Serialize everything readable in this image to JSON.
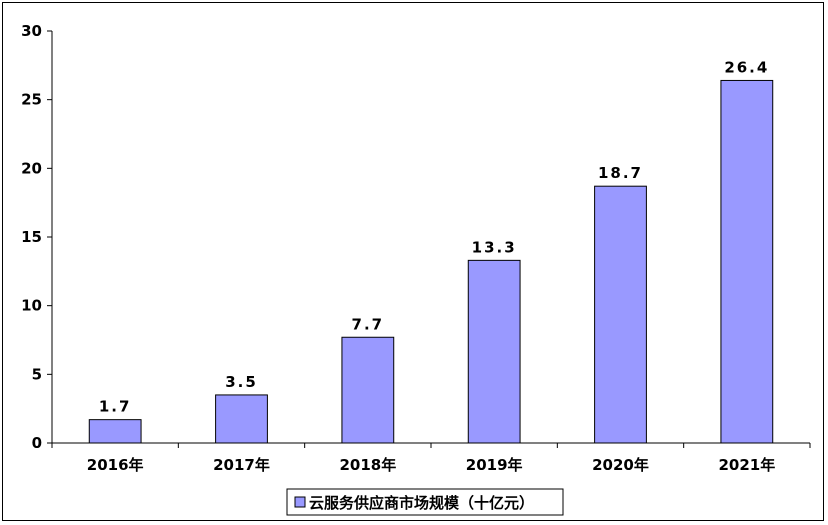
{
  "chart_data": {
    "type": "bar",
    "categories": [
      "2016年",
      "2017年",
      "2018年",
      "2019年",
      "2020年",
      "2021年"
    ],
    "series": [
      {
        "name": "云服务供应商市场规模（十亿元）",
        "values": [
          1.7,
          3.5,
          7.7,
          13.3,
          18.7,
          26.4
        ],
        "color": "#9999ff"
      }
    ],
    "data_labels": [
      "1.7",
      "3.5",
      "7.7",
      "13.3",
      "18.7",
      "26.4"
    ],
    "ylim": [
      0,
      30
    ],
    "yticks": [
      0,
      5,
      10,
      15,
      20,
      25,
      30
    ],
    "grid": false,
    "legend": "bottom",
    "title": "",
    "xlabel": "",
    "ylabel": "",
    "bar_color": "#9999ff",
    "bar_edge_color": "#000000"
  }
}
